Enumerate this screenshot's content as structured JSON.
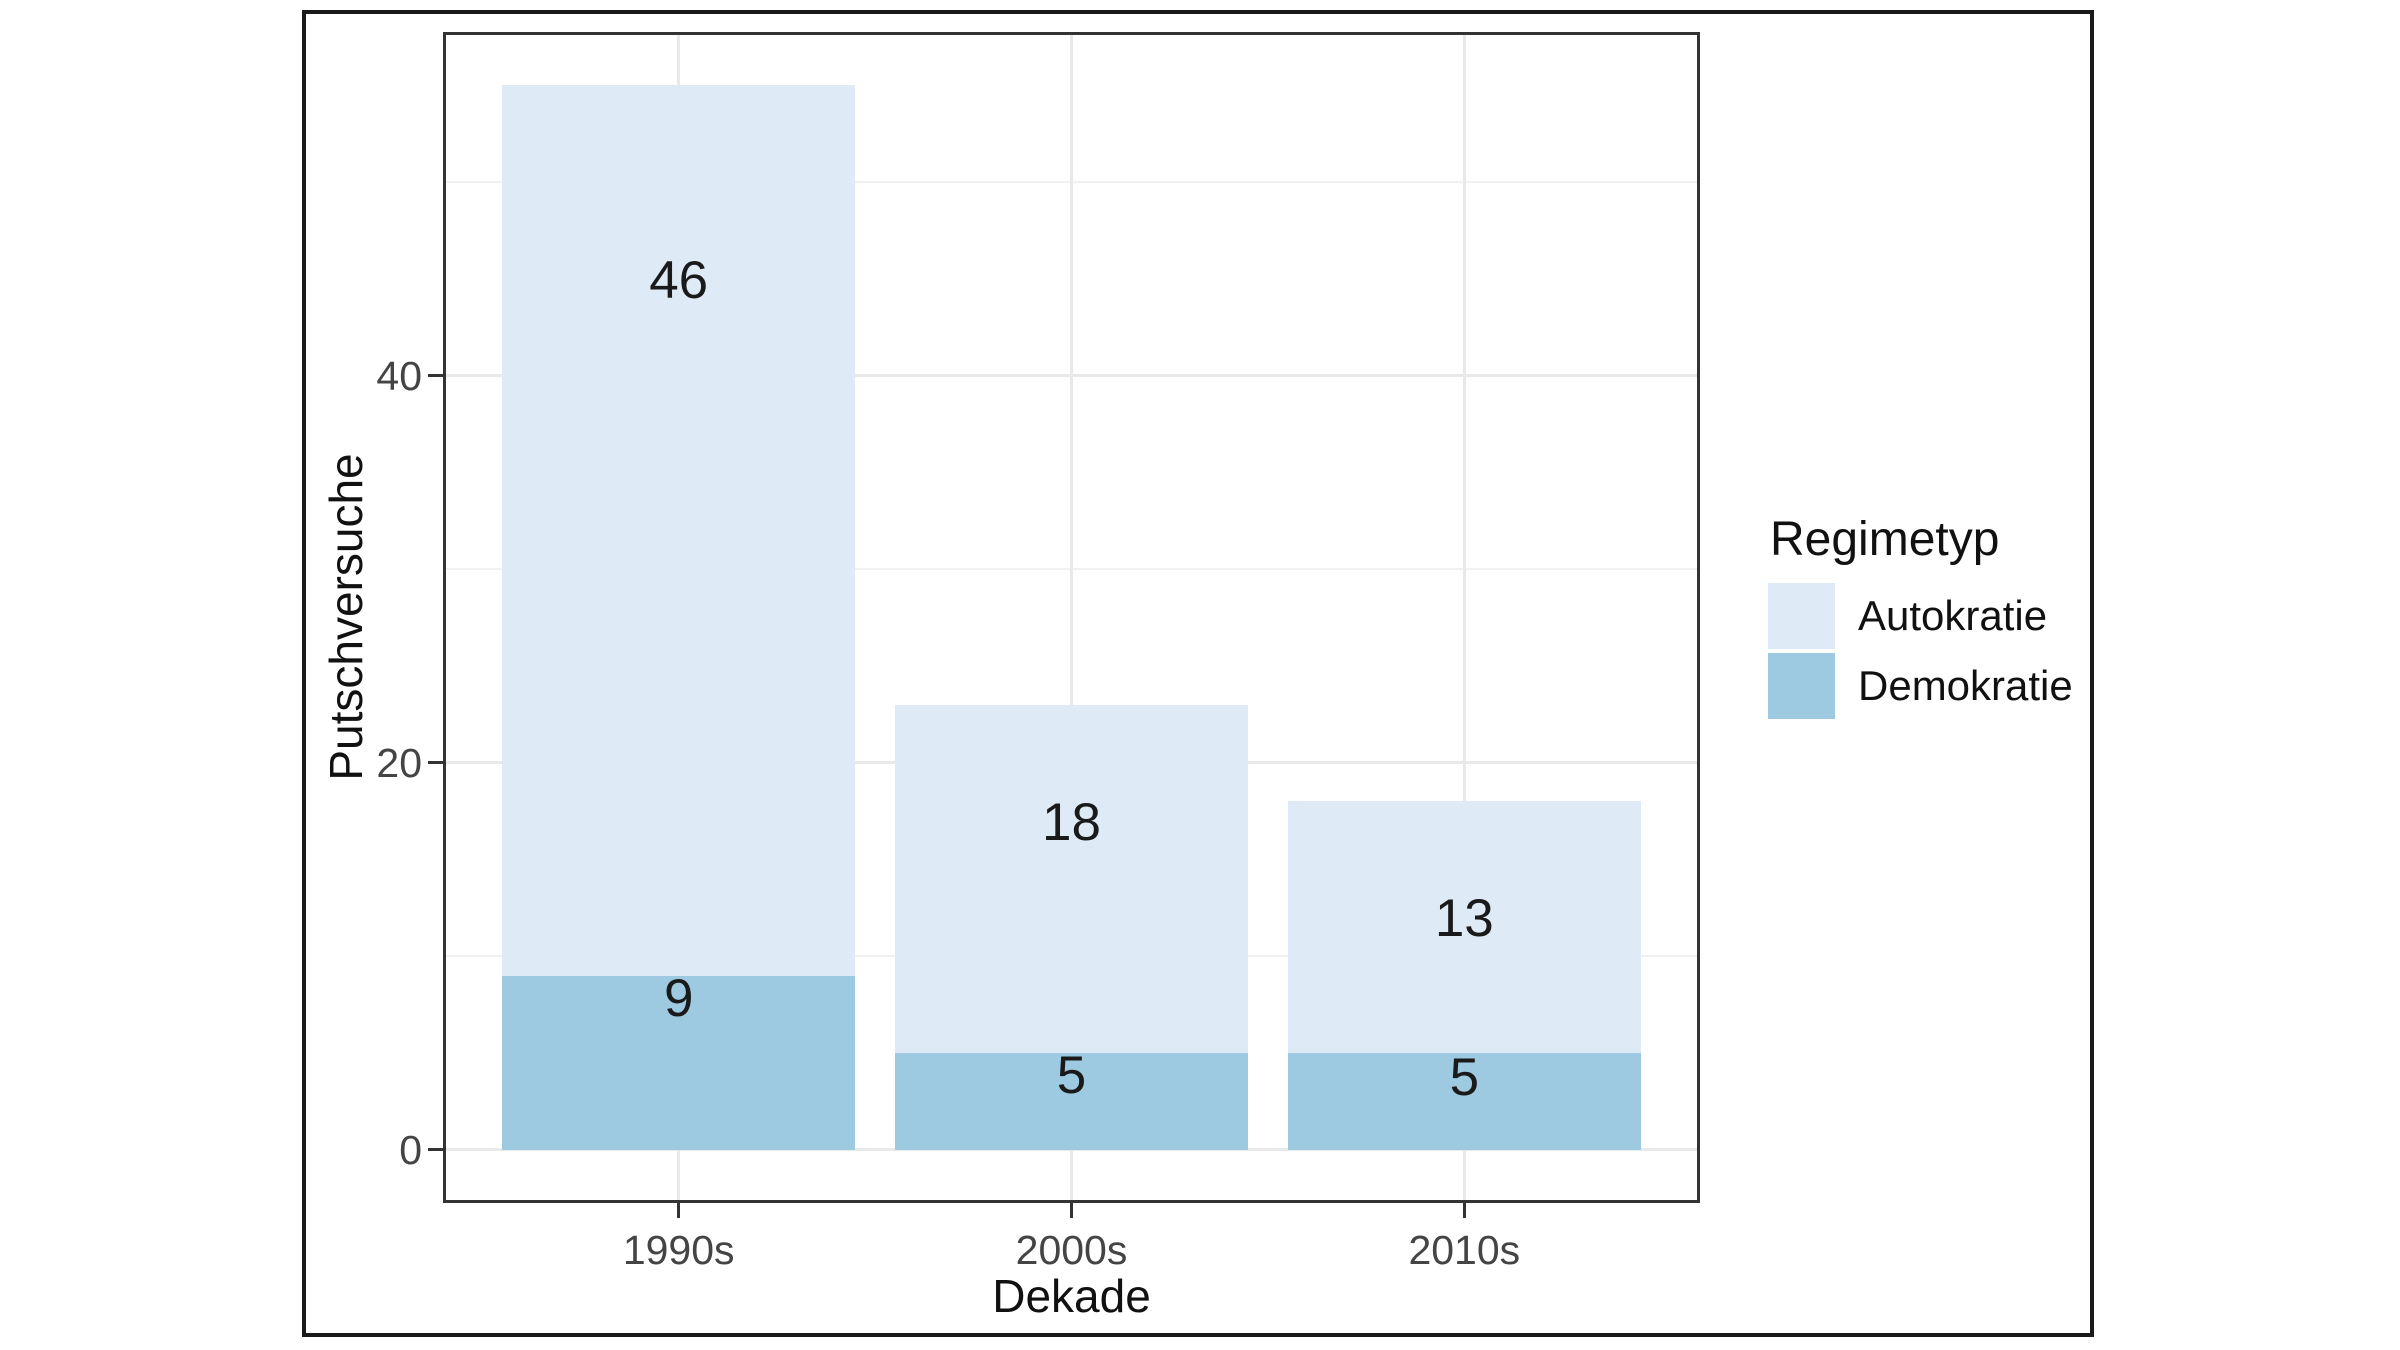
{
  "figure": {
    "background": "#ffffff",
    "frame_color": "#1a1a1a"
  },
  "chart_data": {
    "type": "bar",
    "stacked": true,
    "orientation": "vertical",
    "title": "",
    "xlabel": "Dekade",
    "ylabel": "Putschversuche",
    "categories": [
      "1990s",
      "2000s",
      "2010s"
    ],
    "series": [
      {
        "name": "Demokratie",
        "color": "#9ecae1",
        "values": [
          9,
          5,
          5
        ],
        "label_anchor_y": [
          7.8,
          3.8,
          3.7
        ]
      },
      {
        "name": "Autokratie",
        "color": "#deebf7",
        "values": [
          46,
          18,
          13
        ],
        "label_anchor_y": [
          44.9,
          16.9,
          11.9
        ]
      }
    ],
    "bar_labels": [
      "46",
      "9",
      "18",
      "5",
      "13",
      "5"
    ],
    "yticks": [
      0,
      20,
      40
    ],
    "minor_yticks": [
      10,
      30,
      50
    ],
    "ylim": [
      -2.75,
      57.75
    ],
    "x_expansion": 0.6,
    "bar_width_fraction": 0.9,
    "grid": true,
    "legend": {
      "title": "Regimetyp",
      "position": "right",
      "items": [
        {
          "label": "Autokratie",
          "color": "#deebf7"
        },
        {
          "label": "Demokratie",
          "color": "#9ecae1"
        }
      ]
    }
  },
  "colors": {
    "panel_border": "#333333",
    "grid_major": "#e9e9e9",
    "grid_minor": "#f1f1f1",
    "tick_mark": "#333333",
    "tick_text": "#444444",
    "title_text": "#111111",
    "bar_label_text": "#1a1a1a"
  }
}
